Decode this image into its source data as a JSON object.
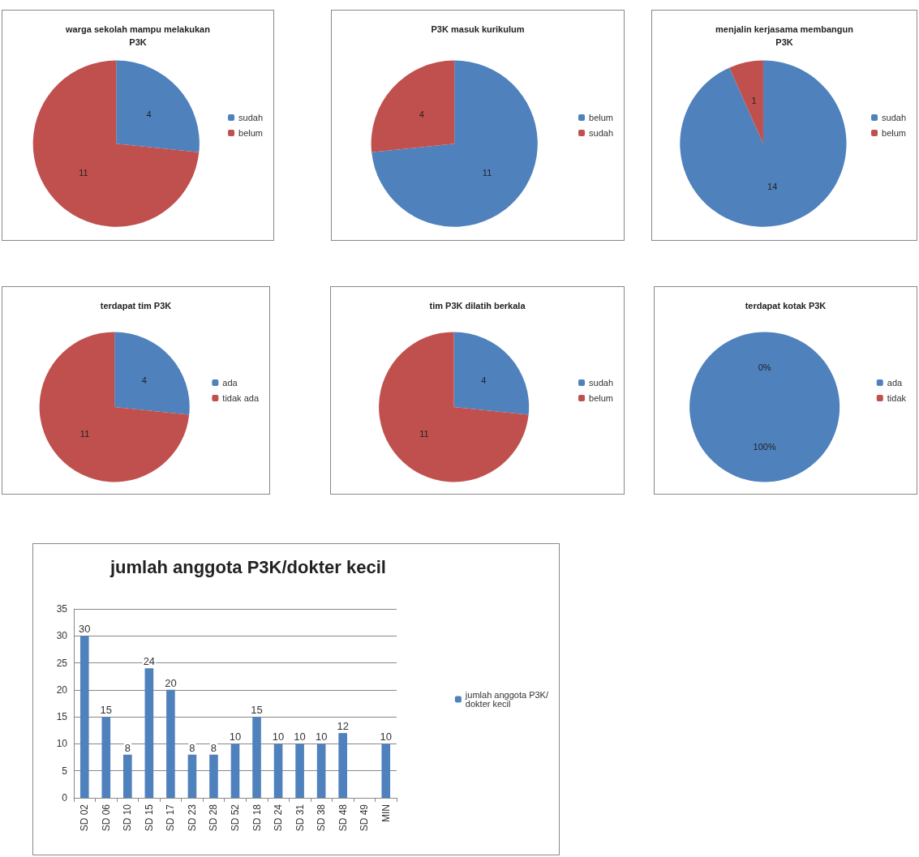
{
  "chart_data": [
    {
      "type": "pie",
      "title": "warga sekolah mampu melakukan\nP3K",
      "categories": [
        "sudah",
        "belum"
      ],
      "values": [
        4,
        11
      ],
      "colors": [
        "#4f81bd",
        "#c0504d"
      ],
      "data_labels": true,
      "legend": "right"
    },
    {
      "type": "pie",
      "title": "P3K masuk kurikulum",
      "categories": [
        "belum",
        "sudah"
      ],
      "values": [
        11,
        4
      ],
      "colors": [
        "#4f81bd",
        "#c0504d"
      ],
      "data_labels": true,
      "legend": "right"
    },
    {
      "type": "pie",
      "title": "menjalin kerjasama membangun\nP3K",
      "categories": [
        "sudah",
        "belum"
      ],
      "values": [
        14,
        1
      ],
      "colors": [
        "#4f81bd",
        "#c0504d"
      ],
      "data_labels": true,
      "legend": "right"
    },
    {
      "type": "pie",
      "title": "terdapat tim P3K",
      "categories": [
        "ada",
        "tidak ada"
      ],
      "values": [
        4,
        11
      ],
      "colors": [
        "#4f81bd",
        "#c0504d"
      ],
      "data_labels": true,
      "legend": "right"
    },
    {
      "type": "pie",
      "title": "tim P3K dilatih berkala",
      "categories": [
        "sudah",
        "belum"
      ],
      "values": [
        4,
        11
      ],
      "colors": [
        "#4f81bd",
        "#c0504d"
      ],
      "data_labels": true,
      "legend": "right"
    },
    {
      "type": "pie",
      "title": "terdapat kotak P3K",
      "categories": [
        "ada",
        "tidak"
      ],
      "values": [
        100,
        0
      ],
      "colors": [
        "#4f81bd",
        "#c0504d"
      ],
      "value_labels": [
        "100%",
        "0%"
      ],
      "legend": "right"
    },
    {
      "type": "bar",
      "title": "jumlah anggota P3K/dokter kecil",
      "categories": [
        "SD 02",
        "SD 06",
        "SD 10",
        "SD 15",
        "SD 17",
        "SD 23",
        "SD 28",
        "SD 52",
        "SD 18",
        "SD 24",
        "SD 31",
        "SD 38",
        "SD 48",
        "SD 49",
        "MIN"
      ],
      "series": [
        {
          "name": "jumlah anggota P3K/dokter kecil",
          "color": "#4f81bd",
          "values": [
            30,
            15,
            8,
            24,
            20,
            8,
            8,
            10,
            15,
            10,
            10,
            10,
            12,
            null,
            10
          ]
        }
      ],
      "ylim": [
        0,
        35
      ],
      "yticks": [
        0,
        5,
        10,
        15,
        20,
        25,
        30,
        35
      ],
      "grid": "y",
      "data_labels": true,
      "legend": "right"
    }
  ]
}
